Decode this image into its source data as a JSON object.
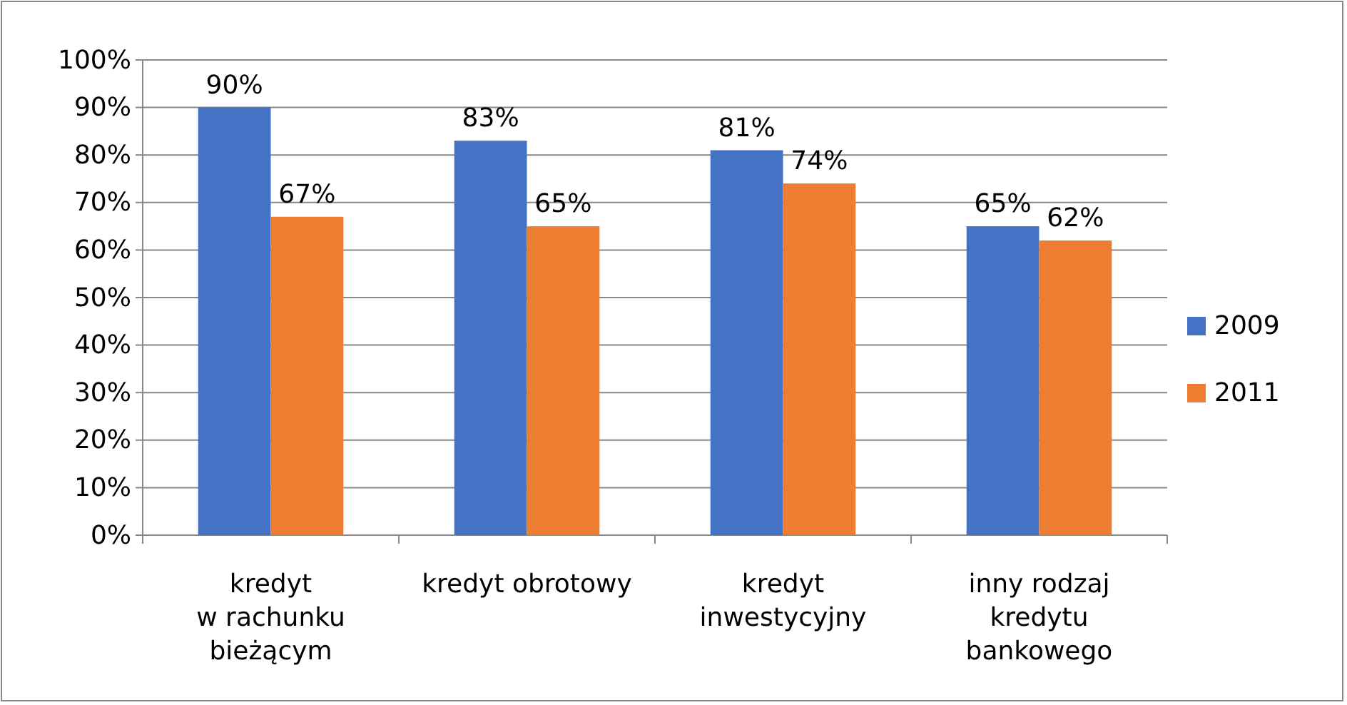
{
  "chart_data": {
    "type": "bar",
    "categories": [
      "kredyt\nw rachunku\nbieżącym",
      "kredyt obrotowy",
      "kredyt\ninwestycyjny",
      "inny rodzaj\nkredytu\nbankowego"
    ],
    "series": [
      {
        "name": "2009",
        "color": "#4472c4",
        "values": [
          90,
          83,
          81,
          65
        ],
        "value_labels": [
          "90%",
          "83%",
          "81%",
          "65%"
        ]
      },
      {
        "name": "2011",
        "color": "#ed7d31",
        "values": [
          67,
          65,
          74,
          62
        ],
        "value_labels": [
          "67%",
          "65%",
          "74%",
          "62%"
        ]
      }
    ],
    "ylim": [
      0,
      100
    ],
    "yticks": [
      {
        "value": 0,
        "label": "0%"
      },
      {
        "value": 10,
        "label": "10%"
      },
      {
        "value": 20,
        "label": "20%"
      },
      {
        "value": 30,
        "label": "30%"
      },
      {
        "value": 40,
        "label": "40%"
      },
      {
        "value": 50,
        "label": "50%"
      },
      {
        "value": 60,
        "label": "60%"
      },
      {
        "value": 70,
        "label": "70%"
      },
      {
        "value": 80,
        "label": "80%"
      },
      {
        "value": 90,
        "label": "90%"
      },
      {
        "value": 100,
        "label": "100%"
      }
    ],
    "grid": "y",
    "legend": "right"
  }
}
